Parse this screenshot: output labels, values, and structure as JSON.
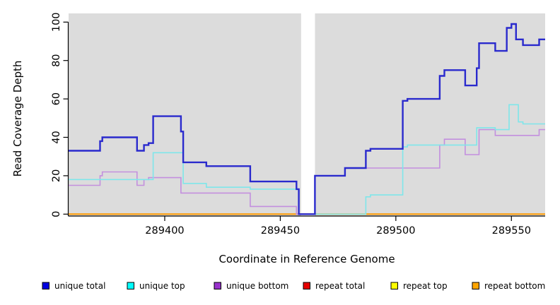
{
  "chart_data": {
    "type": "line",
    "step": true,
    "title": "",
    "xlabel": "Coordinate in Reference Genome",
    "ylabel": "Read Coverage Depth",
    "xlim": [
      289358.4,
      289564.6
    ],
    "ylim": [
      0,
      100
    ],
    "x_ticks": [
      289400,
      289450,
      289500,
      289550
    ],
    "y_ticks": [
      0,
      20,
      40,
      60,
      80,
      100
    ],
    "grid": false,
    "panel_color": "#DCDCDC",
    "gap_region": {
      "from": 289459,
      "to": 289465,
      "color": "#FFFFFF"
    },
    "legend_position": "bottom",
    "series": [
      {
        "name": "repeat total",
        "color": "#EE0000",
        "line_width": 1.5,
        "points": [
          [
            289358.4,
            0
          ]
        ]
      },
      {
        "name": "repeat top",
        "color": "#FFFF00",
        "line_width": 1.5,
        "points": [
          [
            289358.4,
            0
          ]
        ]
      },
      {
        "name": "repeat bottom",
        "color": "#FF9A00",
        "line_width": 2,
        "points": [
          [
            289358.4,
            0
          ]
        ]
      },
      {
        "name": "unique bottom",
        "color": "#C38FDE",
        "line_width": 1.6,
        "points": [
          [
            289358.4,
            15
          ],
          [
            289372,
            20
          ],
          [
            289373,
            22
          ],
          [
            289388,
            15
          ],
          [
            289391,
            18
          ],
          [
            289393,
            19
          ],
          [
            289407,
            11
          ],
          [
            289437,
            4
          ],
          [
            289457,
            0
          ],
          [
            289465,
            20
          ],
          [
            289478,
            24
          ],
          [
            289519,
            36
          ],
          [
            289521,
            39
          ],
          [
            289530,
            31
          ],
          [
            289536,
            44
          ],
          [
            289543,
            41
          ],
          [
            289562,
            44
          ]
        ]
      },
      {
        "name": "unique top",
        "color": "#7FE6EA",
        "line_width": 1.6,
        "points": [
          [
            289358.4,
            18
          ],
          [
            289395,
            32
          ],
          [
            289408,
            16
          ],
          [
            289418,
            14
          ],
          [
            289437,
            13
          ],
          [
            289458,
            0
          ],
          [
            289487,
            9
          ],
          [
            289489,
            10
          ],
          [
            289503,
            35
          ],
          [
            289505,
            36
          ],
          [
            289535,
            45
          ],
          [
            289543,
            44
          ],
          [
            289549,
            57
          ],
          [
            289553,
            48
          ],
          [
            289555,
            47
          ]
        ]
      },
      {
        "name": "unique total",
        "color": "#2A2ACD",
        "line_width": 2.4,
        "points": [
          [
            289358.4,
            33
          ],
          [
            289372,
            38
          ],
          [
            289373,
            40
          ],
          [
            289388,
            33
          ],
          [
            289391,
            36
          ],
          [
            289393,
            37
          ],
          [
            289395,
            51
          ],
          [
            289407,
            43
          ],
          [
            289408,
            27
          ],
          [
            289418,
            25
          ],
          [
            289437,
            17
          ],
          [
            289457,
            13
          ],
          [
            289458,
            0
          ],
          [
            289465,
            20
          ],
          [
            289478,
            24
          ],
          [
            289487,
            33
          ],
          [
            289489,
            34
          ],
          [
            289503,
            59
          ],
          [
            289505,
            60
          ],
          [
            289519,
            72
          ],
          [
            289521,
            75
          ],
          [
            289530,
            67
          ],
          [
            289535,
            76
          ],
          [
            289536,
            89
          ],
          [
            289543,
            85
          ],
          [
            289548,
            97
          ],
          [
            289550,
            99
          ],
          [
            289552,
            91
          ],
          [
            289555,
            88
          ],
          [
            289562,
            91
          ]
        ]
      }
    ],
    "legend": [
      {
        "label": "unique total",
        "color": "#0000E0"
      },
      {
        "label": "unique top",
        "color": "#00FFFF"
      },
      {
        "label": "unique bottom",
        "color": "#9932CC"
      },
      {
        "label": "repeat total",
        "color": "#E60000"
      },
      {
        "label": "repeat top",
        "color": "#FFFF00"
      },
      {
        "label": "repeat bottom",
        "color": "#FFA500"
      }
    ]
  }
}
